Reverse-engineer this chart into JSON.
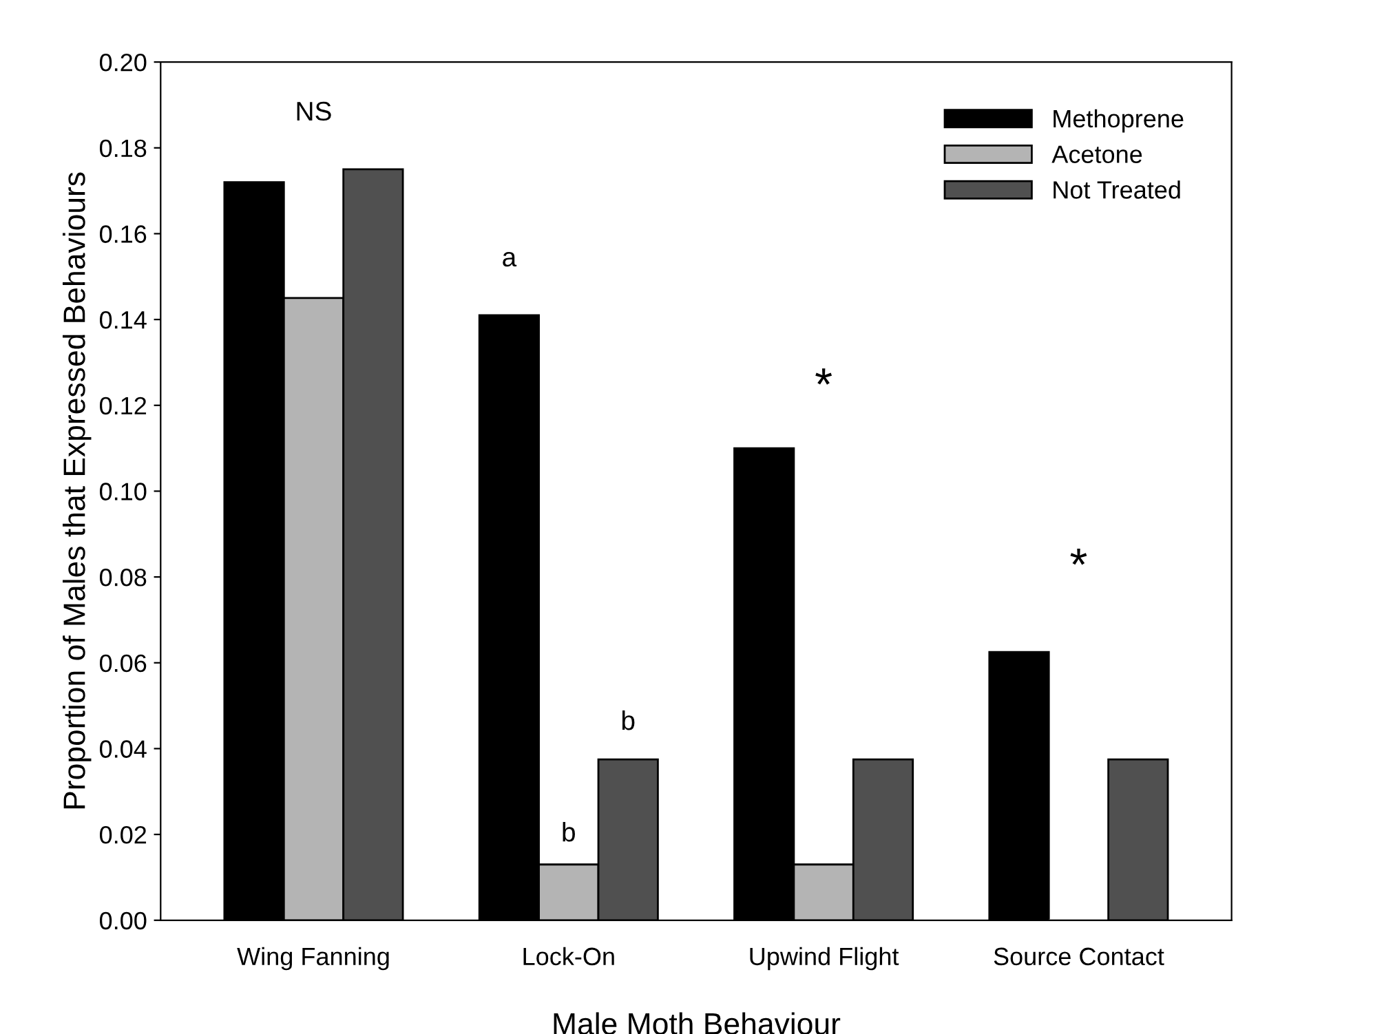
{
  "chart_data": {
    "type": "bar",
    "xlabel": "Male Moth Behaviour",
    "ylabel": "Proportion of Males that Expressed Behaviours",
    "categories": [
      "Wing Fanning",
      "Lock-On",
      "Upwind Flight",
      "Source Contact"
    ],
    "series": [
      {
        "name": "Methoprene",
        "color": "#000000",
        "values": [
          0.172,
          0.141,
          0.11,
          0.0625
        ]
      },
      {
        "name": "Acetone",
        "color": "#b4b4b4",
        "values": [
          0.145,
          0.013,
          0.013,
          0
        ]
      },
      {
        "name": "Not Treated",
        "color": "#505050",
        "values": [
          0.175,
          0.0375,
          0.0375,
          0.0375
        ]
      }
    ],
    "ylim": [
      0,
      0.2
    ],
    "yticks": [
      {
        "value": 0,
        "label": "0.00"
      },
      {
        "value": 0.02,
        "label": "0.02"
      },
      {
        "value": 0.04,
        "label": "0.04"
      },
      {
        "value": 0.06,
        "label": "0.06"
      },
      {
        "value": 0.08,
        "label": "0.08"
      },
      {
        "value": 0.1,
        "label": "0.10"
      },
      {
        "value": 0.12,
        "label": "0.12"
      },
      {
        "value": 0.14,
        "label": "0.14"
      },
      {
        "value": 0.16,
        "label": "0.16"
      },
      {
        "value": 0.18,
        "label": "0.18"
      },
      {
        "value": 0.2,
        "label": "0.20"
      }
    ],
    "annotations": [
      "NS",
      "a",
      "b",
      "b",
      "*",
      "*"
    ],
    "grid": false,
    "legend": "top right"
  }
}
